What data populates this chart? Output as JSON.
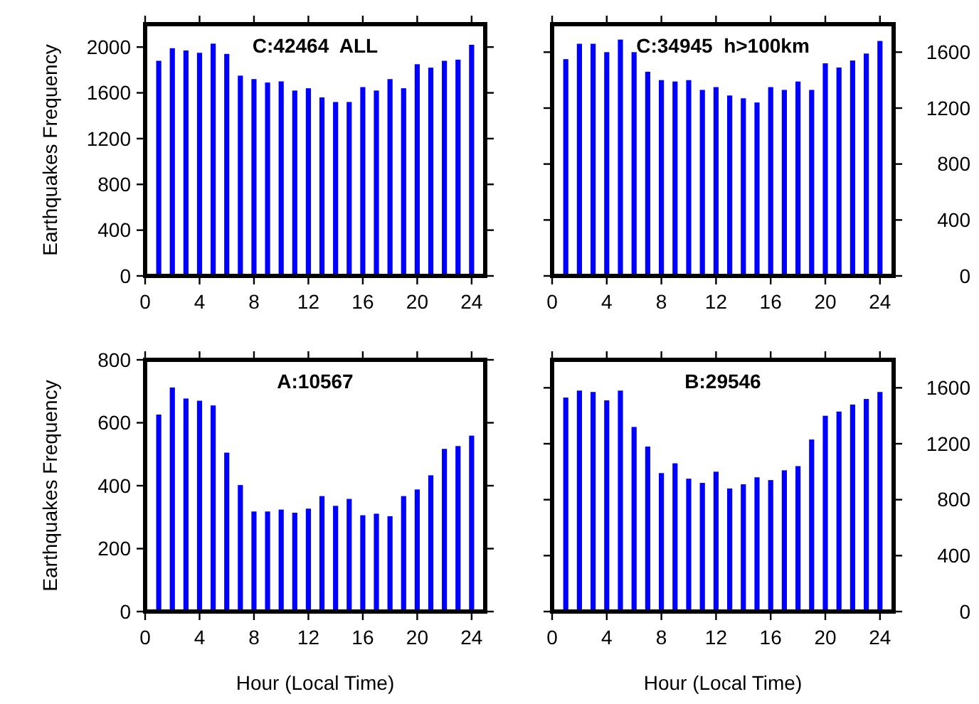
{
  "chart_data": [
    {
      "type": "bar",
      "title": "C:42464  ALL",
      "ylabel": "Earthquakes Frequency",
      "x": [
        1,
        2,
        3,
        4,
        5,
        6,
        7,
        8,
        9,
        10,
        11,
        12,
        13,
        14,
        15,
        16,
        17,
        18,
        19,
        20,
        21,
        22,
        23,
        24
      ],
      "values": [
        1880,
        1990,
        1970,
        1950,
        2030,
        1940,
        1750,
        1720,
        1690,
        1700,
        1620,
        1640,
        1560,
        1520,
        1520,
        1650,
        1620,
        1720,
        1640,
        1850,
        1820,
        1880,
        1890,
        2020
      ],
      "color": "#0000ff",
      "xlim": [
        0,
        25
      ],
      "xticks": [
        0,
        4,
        8,
        12,
        16,
        20,
        24
      ],
      "ylim": [
        0,
        2200
      ],
      "yticks": [
        0,
        400,
        800,
        1200,
        1600,
        2000
      ],
      "grid": false
    },
    {
      "type": "bar",
      "title": "C:34945  h>100km",
      "x": [
        1,
        2,
        3,
        4,
        5,
        6,
        7,
        8,
        9,
        10,
        11,
        12,
        13,
        14,
        15,
        16,
        17,
        18,
        19,
        20,
        21,
        22,
        23,
        24
      ],
      "values": [
        1550,
        1660,
        1660,
        1600,
        1690,
        1600,
        1460,
        1400,
        1390,
        1400,
        1330,
        1350,
        1290,
        1270,
        1240,
        1350,
        1330,
        1390,
        1330,
        1520,
        1490,
        1540,
        1590,
        1680
      ],
      "color": "#0000ff",
      "xlim": [
        0,
        25
      ],
      "xticks": [
        0,
        4,
        8,
        12,
        16,
        20,
        24
      ],
      "ylim": [
        0,
        1800
      ],
      "yticks": [
        0,
        400,
        800,
        1200,
        1600
      ],
      "grid": false
    },
    {
      "type": "bar",
      "title": "A:10567",
      "xlabel": "Hour (Local Time)",
      "ylabel": "Earthquakes Frequency",
      "x": [
        1,
        2,
        3,
        4,
        5,
        6,
        7,
        8,
        9,
        10,
        11,
        12,
        13,
        14,
        15,
        16,
        17,
        18,
        19,
        20,
        21,
        22,
        23,
        24
      ],
      "values": [
        626,
        712,
        677,
        670,
        655,
        505,
        402,
        318,
        318,
        324,
        314,
        327,
        367,
        336,
        358,
        306,
        311,
        303,
        367,
        388,
        433,
        517,
        526,
        559
      ],
      "color": "#0000ff",
      "xlim": [
        0,
        25
      ],
      "xticks": [
        0,
        4,
        8,
        12,
        16,
        20,
        24
      ],
      "ylim": [
        0,
        800
      ],
      "yticks": [
        0,
        200,
        400,
        600,
        800
      ],
      "grid": false
    },
    {
      "type": "bar",
      "title": "B:29546",
      "xlabel": "Hour (Local Time)",
      "x": [
        1,
        2,
        3,
        4,
        5,
        6,
        7,
        8,
        9,
        10,
        11,
        12,
        13,
        14,
        15,
        16,
        17,
        18,
        19,
        20,
        21,
        22,
        23,
        24
      ],
      "values": [
        1530,
        1580,
        1570,
        1510,
        1580,
        1320,
        1180,
        990,
        1060,
        950,
        920,
        1000,
        880,
        910,
        960,
        940,
        1010,
        1040,
        1230,
        1400,
        1430,
        1480,
        1520,
        1570
      ],
      "color": "#0000ff",
      "xlim": [
        0,
        25
      ],
      "xticks": [
        0,
        4,
        8,
        12,
        16,
        20,
        24
      ],
      "ylim": [
        0,
        1800
      ],
      "yticks": [
        0,
        400,
        800,
        1200,
        1600
      ],
      "grid": false
    }
  ]
}
